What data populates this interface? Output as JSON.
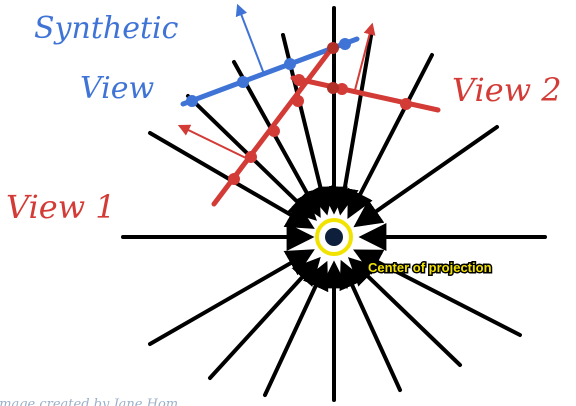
{
  "labels": {
    "synthetic_view_line1": "Synthetic",
    "synthetic_view_line2": "View",
    "view1": "View 1",
    "view2": "View 2",
    "center": "Center of projection",
    "footer": "Image created by Jane Hom"
  },
  "colors": {
    "blue": "#3f74d6",
    "red": "#d33b36",
    "dark_red": "#b03028",
    "black": "#000000",
    "center_ring": "#f2e200",
    "center_dot": "#0d1f3a",
    "label_fill": "#f2e200",
    "label_outline": "#000000",
    "footer": "#9bb0c8"
  }
}
